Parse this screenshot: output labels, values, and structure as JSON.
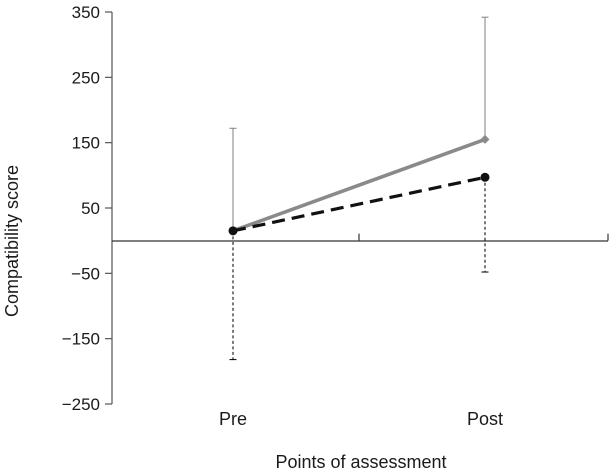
{
  "chart_data": {
    "type": "line",
    "title": "",
    "xlabel": "Points of assessment",
    "ylabel": "Compatibility score",
    "categories": [
      "Pre",
      "Post"
    ],
    "yticks": [
      350,
      250,
      150,
      50,
      -50,
      -150,
      -250
    ],
    "ytick_labels": [
      "350",
      "250",
      "150",
      "50",
      "−50",
      "−150",
      "−250"
    ],
    "ylim": [
      -250,
      350
    ],
    "grid": false,
    "legend": "none",
    "series": [
      {
        "style": "solid",
        "color": "#8a8a8a",
        "marker": "diamond",
        "values": [
          15,
          155
        ],
        "error_upper": [
          172,
          342
        ],
        "error_lower": null
      },
      {
        "style": "dashed",
        "color": "#111111",
        "marker": "circle",
        "values": [
          15,
          97
        ],
        "error_upper": null,
        "error_lower": [
          -182,
          -48
        ]
      }
    ]
  }
}
